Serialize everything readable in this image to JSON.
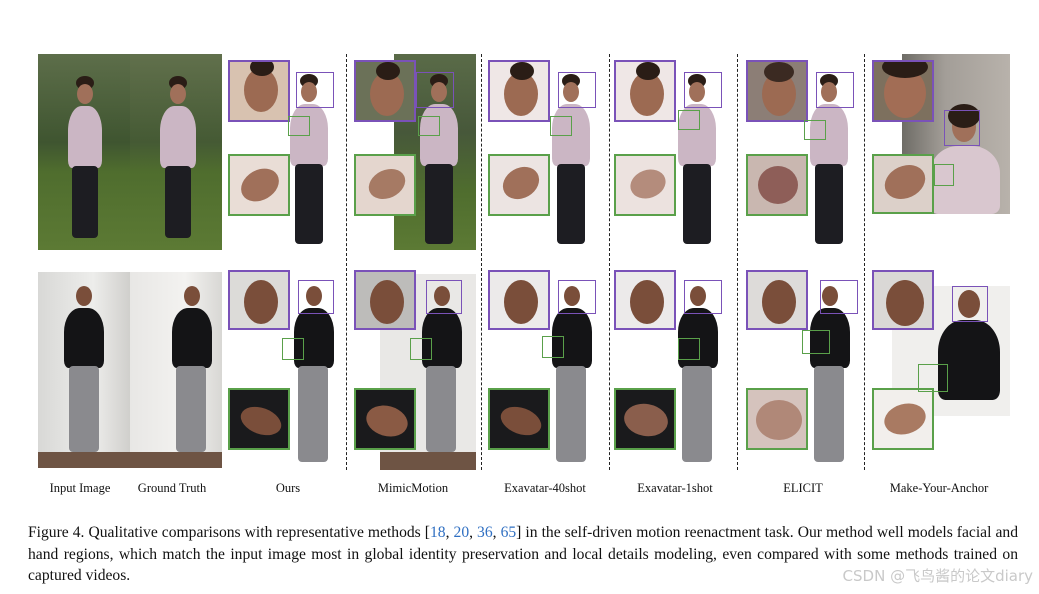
{
  "figure": {
    "columns": [
      {
        "label": "Input Image"
      },
      {
        "label": "Ground Truth"
      },
      {
        "label": "Ours"
      },
      {
        "label": "MimicMotion"
      },
      {
        "label": "Exavatar-40shot"
      },
      {
        "label": "Exavatar-1shot"
      },
      {
        "label": "ELICIT"
      },
      {
        "label": "Make-Your-Anchor"
      }
    ],
    "rows": [
      {
        "subject": "woman"
      },
      {
        "subject": "man"
      }
    ]
  },
  "caption": {
    "prefix": "Figure 4.  Qualitative comparisons with representative methods [",
    "refs": [
      "18",
      "20",
      "36",
      "65"
    ],
    "ref_sep": ", ",
    "suffix": "] in the self-driven motion reenactment task. Our method well models facial and hand regions, which match the input image most in global identity preservation and local details modeling, even compared with some methods trained on captured videos."
  },
  "watermark": "CSDN @飞鸟酱的论文diary",
  "colors": {
    "face_box": "#7a52b8",
    "hand_box": "#5aa04a",
    "ref_link": "#2f6fc2"
  }
}
